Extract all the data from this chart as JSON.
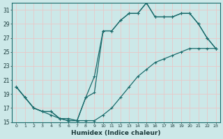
{
  "xlabel": "Humidex (Indice chaleur)",
  "bg_color": "#cce8e8",
  "grid_color": "#e8c8c8",
  "line_color": "#1a6b6b",
  "xlim": [
    -0.5,
    23.5
  ],
  "ylim": [
    15,
    32
  ],
  "yticks": [
    15,
    17,
    19,
    21,
    23,
    25,
    27,
    29,
    31
  ],
  "xticks": [
    0,
    1,
    2,
    3,
    4,
    5,
    6,
    7,
    8,
    9,
    10,
    11,
    12,
    13,
    14,
    15,
    16,
    17,
    18,
    19,
    20,
    21,
    22,
    23
  ],
  "x": [
    0,
    1,
    2,
    3,
    4,
    5,
    6,
    7,
    8,
    9,
    10,
    11,
    12,
    13,
    14,
    15,
    16,
    17,
    18,
    19,
    20,
    21,
    22,
    23
  ],
  "line_upper": [
    20.0,
    18.5,
    17.0,
    16.5,
    16.5,
    15.5,
    15.2,
    15.2,
    18.5,
    19.2,
    28.0,
    28.0,
    29.5,
    30.5,
    30.5,
    32.0,
    30.0,
    30.0,
    30.0,
    30.5,
    30.5,
    29.0,
    27.0,
    25.5
  ],
  "line_mid": [
    20.0,
    18.5,
    17.0,
    16.5,
    16.5,
    15.5,
    15.2,
    15.2,
    18.5,
    21.5,
    28.0,
    28.0,
    29.5,
    30.5,
    30.5,
    32.0,
    30.0,
    30.0,
    30.0,
    30.5,
    30.5,
    29.0,
    27.0,
    25.5
  ],
  "line_lower": [
    20.0,
    18.5,
    17.0,
    16.5,
    16.0,
    15.5,
    15.5,
    15.2,
    15.2,
    15.2,
    16.0,
    17.0,
    18.5,
    20.0,
    21.5,
    22.5,
    23.5,
    24.0,
    24.5,
    25.0,
    25.5,
    25.5,
    25.5,
    25.5
  ]
}
